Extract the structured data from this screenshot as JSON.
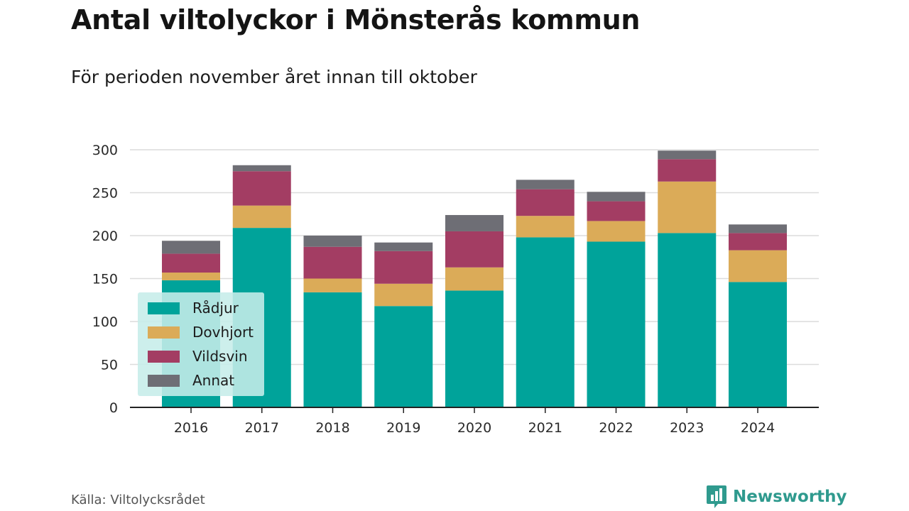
{
  "title": "Antal viltolyckor i Mönsterås kommun",
  "subtitle": "För perioden november året innan till oktober",
  "source": "Källa: Viltolycksrådet",
  "brand": {
    "name": "Newsworthy",
    "icon": "newsworthy-logo-icon",
    "color": "#2f9a8e"
  },
  "chart_data": {
    "type": "bar",
    "stacked": true,
    "categories": [
      "2016",
      "2017",
      "2018",
      "2019",
      "2020",
      "2021",
      "2022",
      "2023",
      "2024"
    ],
    "series": [
      {
        "name": "Rådjur",
        "color": "#00a39a",
        "values": [
          148,
          209,
          134,
          118,
          136,
          198,
          193,
          203,
          146
        ]
      },
      {
        "name": "Dovhjort",
        "color": "#dbab58",
        "values": [
          9,
          26,
          16,
          26,
          27,
          25,
          24,
          60,
          37
        ]
      },
      {
        "name": "Vildsvin",
        "color": "#a33d63",
        "values": [
          22,
          40,
          37,
          38,
          42,
          31,
          23,
          26,
          20
        ]
      },
      {
        "name": "Annat",
        "color": "#6e6e75",
        "values": [
          15,
          7,
          13,
          10,
          19,
          11,
          11,
          10,
          10
        ]
      }
    ],
    "ylim": [
      0,
      300
    ],
    "yticks": [
      "0",
      "50",
      "100",
      "150",
      "200",
      "250",
      "300"
    ],
    "grid": true,
    "legend": {
      "position": "bottom-left",
      "background": "#c6ede9"
    }
  }
}
